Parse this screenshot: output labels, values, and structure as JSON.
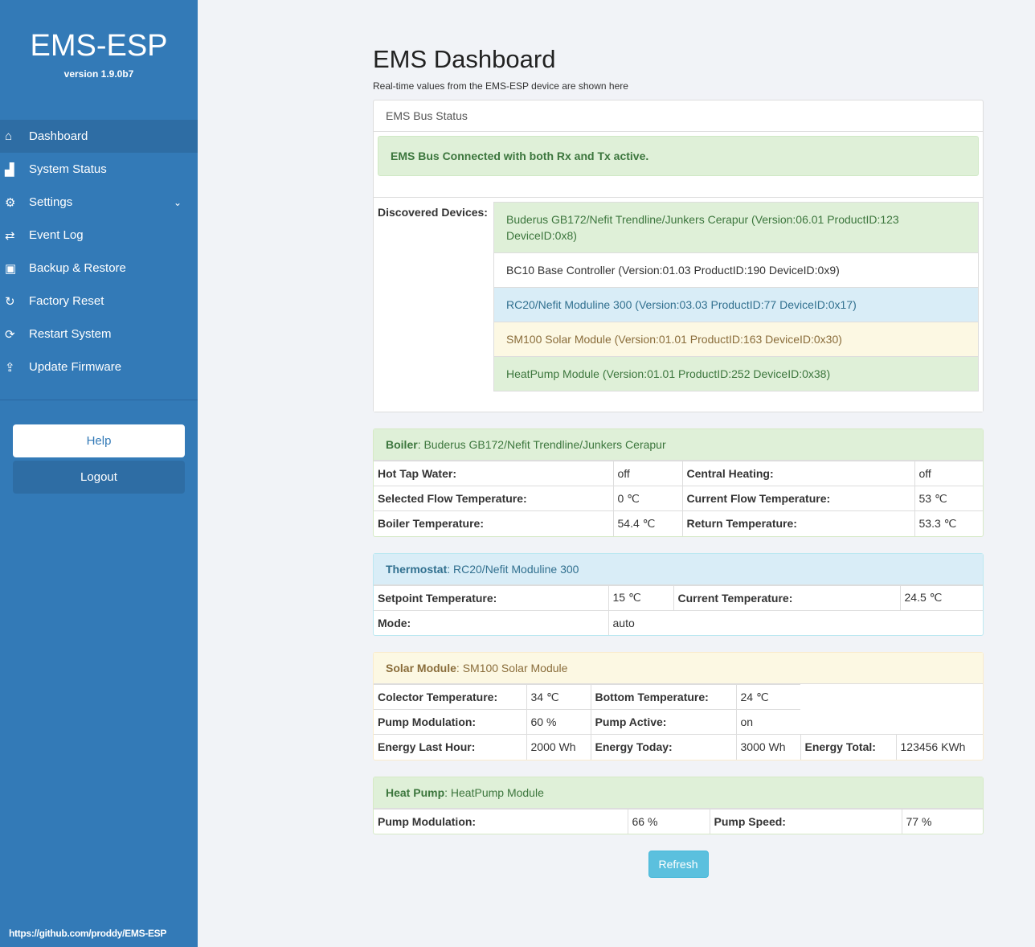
{
  "sidebar": {
    "brand": "EMS-ESP",
    "version": "version 1.9.0b7",
    "items": [
      {
        "label": "Dashboard",
        "icon": "home-icon"
      },
      {
        "label": "System Status",
        "icon": "bar-chart-icon"
      },
      {
        "label": "Settings",
        "icon": "gear-icon"
      },
      {
        "label": "Event Log",
        "icon": "exchange-icon"
      },
      {
        "label": "Backup & Restore",
        "icon": "save-icon"
      },
      {
        "label": "Factory Reset",
        "icon": "redo-icon"
      },
      {
        "label": "Restart System",
        "icon": "refresh-icon"
      },
      {
        "label": "Update Firmware",
        "icon": "upload-icon"
      }
    ],
    "help": "Help",
    "logout": "Logout",
    "footer": "https://github.com/proddy/EMS-ESP"
  },
  "main": {
    "title": "EMS Dashboard",
    "subtitle": "Real-time values from the EMS-ESP device are shown here",
    "bus": {
      "title": "EMS Bus Status",
      "status": "EMS Bus Connected with both Rx and Tx active.",
      "devices_label": "Discovered Devices:",
      "devices": [
        "Buderus GB172/Nefit Trendline/Junkers Cerapur (Version:06.01 ProductID:123 DeviceID:0x8)",
        "BC10 Base Controller (Version:01.03 ProductID:190 DeviceID:0x9)",
        "RC20/Nefit Moduline 300 (Version:03.03 ProductID:77 DeviceID:0x17)",
        "SM100 Solar Module (Version:01.01 ProductID:163 DeviceID:0x30)",
        "HeatPump Module (Version:01.01 ProductID:252 DeviceID:0x38)"
      ]
    },
    "boiler": {
      "label": "Boiler",
      "name": "Buderus GB172/Nefit Trendline/Junkers Cerapur",
      "rows": [
        [
          "Hot Tap Water:",
          "off",
          "Central Heating:",
          "off"
        ],
        [
          "Selected Flow Temperature:",
          "0 ℃",
          "Current Flow Temperature:",
          "53 ℃"
        ],
        [
          "Boiler Temperature:",
          "54.4 ℃",
          "Return Temperature:",
          "53.3 ℃"
        ]
      ]
    },
    "thermostat": {
      "label": "Thermostat",
      "name": "RC20/Nefit Moduline 300",
      "rows": [
        [
          "Setpoint Temperature:",
          "15 ℃",
          "Current Temperature:",
          "24.5 ℃"
        ]
      ],
      "mode_label": "Mode:",
      "mode": "auto"
    },
    "solar": {
      "label": "Solar Module",
      "name": "SM100 Solar Module",
      "rows": [
        [
          "Colector Temperature:",
          "34 ℃",
          "Bottom Temperature:",
          "24 ℃"
        ],
        [
          "Pump Modulation:",
          "60 %",
          "Pump Active:",
          "on"
        ],
        [
          "Energy Last Hour:",
          "2000 Wh",
          "Energy Today:",
          "3000 Wh",
          "Energy Total:",
          "123456 KWh"
        ]
      ]
    },
    "heatpump": {
      "label": "Heat Pump",
      "name": "HeatPump Module",
      "rows": [
        [
          "Pump Modulation:",
          "66 %",
          "Pump Speed:",
          "77 %"
        ]
      ]
    },
    "refresh": "Refresh"
  }
}
